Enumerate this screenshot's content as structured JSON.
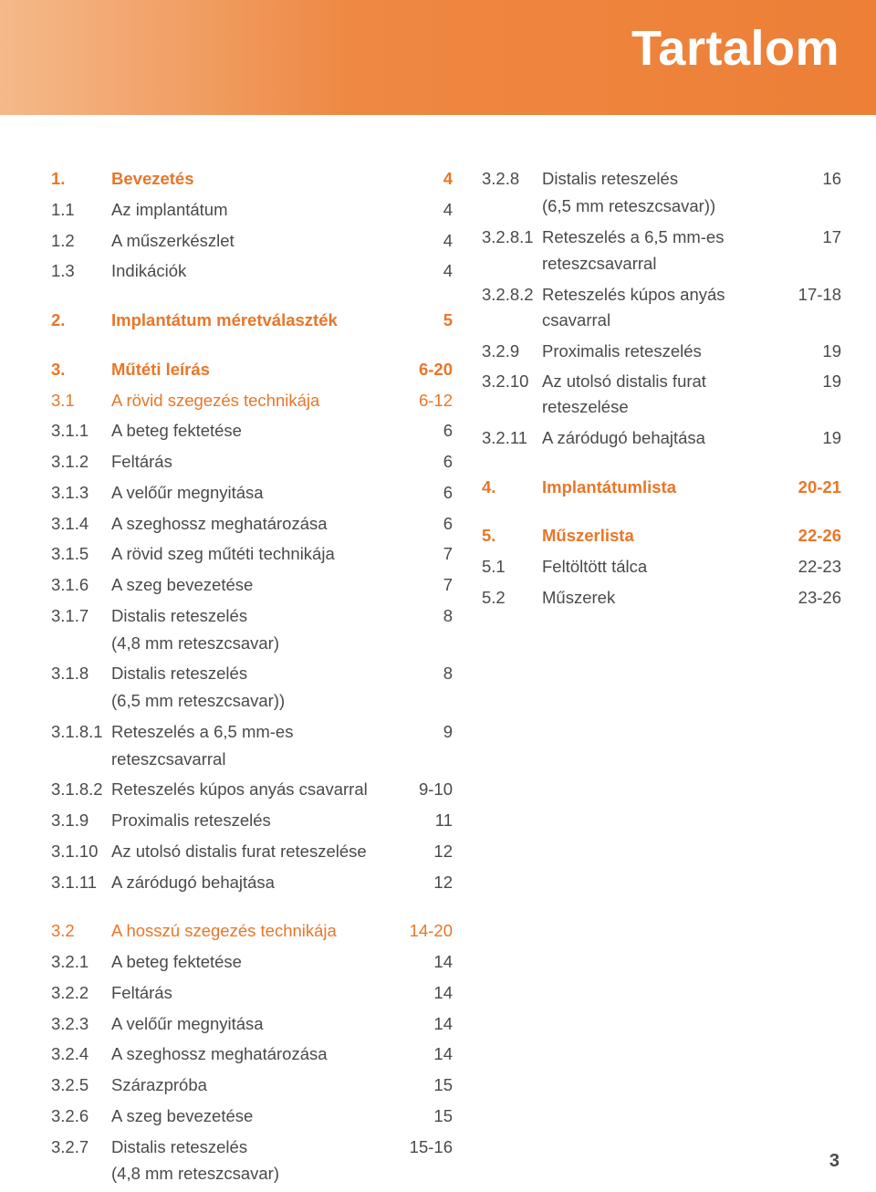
{
  "header": {
    "title": "Tartalom"
  },
  "page_number": "3",
  "colors": {
    "accent": "#e97628",
    "text": "#4a4a4a",
    "band_start": "#f5b98a",
    "band_end": "#ed7f36"
  },
  "left": [
    {
      "style": "bold",
      "num": "1.",
      "label": "Bevezetés",
      "page": "4"
    },
    {
      "style": "normal",
      "num": "1.1",
      "label": "Az implantátum",
      "page": "4"
    },
    {
      "style": "normal",
      "num": "1.2",
      "label": "A műszerkészlet",
      "page": "4"
    },
    {
      "style": "normal",
      "num": "1.3",
      "label": "Indikációk",
      "page": "4"
    },
    {
      "style": "gap"
    },
    {
      "style": "bold",
      "num": "2.",
      "label": "Implantátum méretválaszték",
      "page": "5"
    },
    {
      "style": "gap"
    },
    {
      "style": "bold",
      "num": "3.",
      "label": "Műtéti leírás",
      "page": "6-20"
    },
    {
      "style": "accent",
      "num": "3.1",
      "label": "A rövid szegezés technikája",
      "page": "6-12"
    },
    {
      "style": "normal",
      "num": "3.1.1",
      "label": "A beteg fektetése",
      "page": "6"
    },
    {
      "style": "normal",
      "num": "3.1.2",
      "label": "Feltárás",
      "page": "6"
    },
    {
      "style": "normal",
      "num": "3.1.3",
      "label": "A velőűr megnyitása",
      "page": "6"
    },
    {
      "style": "normal",
      "num": "3.1.4",
      "label": "A szeghossz meghatározása",
      "page": "6"
    },
    {
      "style": "normal",
      "num": "3.1.5",
      "label": "A rövid szeg műtéti technikája",
      "page": "7"
    },
    {
      "style": "normal",
      "num": "3.1.6",
      "label": "A szeg bevezetése",
      "page": "7"
    },
    {
      "style": "normal",
      "num": "3.1.7",
      "label": "Distalis reteszelés",
      "page": "8",
      "sub": "(4,8 mm reteszcsavar)"
    },
    {
      "style": "normal",
      "num": "3.1.8",
      "label": "Distalis reteszelés",
      "page": "8",
      "sub": "(6,5 mm reteszcsavar))"
    },
    {
      "style": "normal",
      "num": "3.1.8.1",
      "label": "Reteszelés a 6,5 mm-es",
      "page": "9",
      "sub": "reteszcsavarral"
    },
    {
      "style": "normal",
      "num": "3.1.8.2",
      "label": "Reteszelés kúpos anyás csavarral",
      "page": "9-10"
    },
    {
      "style": "normal",
      "num": "3.1.9",
      "label": "Proximalis reteszelés",
      "page": "11"
    },
    {
      "style": "normal",
      "num": "3.1.10",
      "label": "Az utolsó distalis furat reteszelése",
      "page": "12"
    },
    {
      "style": "normal",
      "num": "3.1.11",
      "label": "A záródugó behajtása",
      "page": "12"
    },
    {
      "style": "gap"
    },
    {
      "style": "accent",
      "num": "3.2",
      "label": "A hosszú szegezés technikája",
      "page": "14-20"
    },
    {
      "style": "normal",
      "num": "3.2.1",
      "label": "A beteg fektetése",
      "page": "14"
    },
    {
      "style": "normal",
      "num": "3.2.2",
      "label": "Feltárás",
      "page": "14"
    },
    {
      "style": "normal",
      "num": "3.2.3",
      "label": "A velőűr megnyitása",
      "page": "14"
    },
    {
      "style": "normal",
      "num": "3.2.4",
      "label": "A szeghossz meghatározása",
      "page": "14"
    },
    {
      "style": "normal",
      "num": "3.2.5",
      "label": "Szárazpróba",
      "page": "15"
    },
    {
      "style": "normal",
      "num": "3.2.6",
      "label": "A szeg bevezetése",
      "page": "15"
    },
    {
      "style": "normal",
      "num": "3.2.7",
      "label": "Distalis reteszelés",
      "page": "15-16",
      "sub": "(4,8 mm reteszcsavar)"
    }
  ],
  "right": [
    {
      "style": "normal",
      "num": "3.2.8",
      "label": "Distalis reteszelés",
      "page": "16",
      "sub": "(6,5 mm reteszcsavar))"
    },
    {
      "style": "normal",
      "num": "3.2.8.1",
      "label": "Reteszelés a 6,5 mm-es",
      "page": "17",
      "sub": "reteszcsavarral"
    },
    {
      "style": "normal",
      "num": "3.2.8.2",
      "label": "Reteszelés kúpos anyás csavarral",
      "page": "17-18"
    },
    {
      "style": "normal",
      "num": "3.2.9",
      "label": "Proximalis reteszelés",
      "page": "19"
    },
    {
      "style": "normal",
      "num": "3.2.10",
      "label": "Az utolsó distalis furat reteszelése",
      "page": "19"
    },
    {
      "style": "normal",
      "num": "3.2.11",
      "label": "A záródugó behajtása",
      "page": "19"
    },
    {
      "style": "gap"
    },
    {
      "style": "bold",
      "num": "4.",
      "label": "Implantátumlista",
      "page": "20-21"
    },
    {
      "style": "gap"
    },
    {
      "style": "bold",
      "num": "5.",
      "label": "Műszerlista",
      "page": "22-26"
    },
    {
      "style": "normal",
      "num": "5.1",
      "label": "Feltöltött tálca",
      "page": "22-23"
    },
    {
      "style": "normal",
      "num": "5.2",
      "label": "Műszerek",
      "page": "23-26"
    }
  ]
}
